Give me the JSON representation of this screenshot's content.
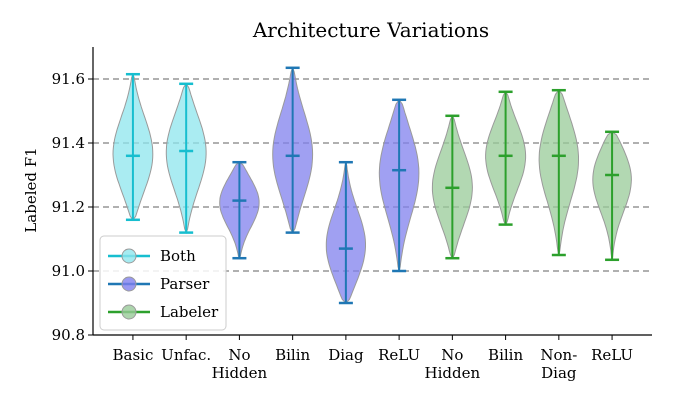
{
  "chart_data": {
    "type": "violin",
    "title": "Architecture Variations",
    "xlabel": "",
    "ylabel": "Labeled F1",
    "ylim": [
      90.8,
      91.7
    ],
    "yticks": [
      90.8,
      91.0,
      91.2,
      91.4,
      91.6
    ],
    "ytick_labels": [
      "90.8",
      "91.0",
      "91.2",
      "91.4",
      "91.6"
    ],
    "grid_lines": [
      91.0,
      91.2,
      91.4,
      91.6
    ],
    "grid": "horizontal-dashed",
    "legend_position": "bottom-left",
    "legend": [
      {
        "name": "Both",
        "group": "both"
      },
      {
        "name": "Parser",
        "group": "parser"
      },
      {
        "name": "Labeler",
        "group": "labeler"
      }
    ],
    "colors": {
      "both": {
        "line": "#17becf",
        "fill": "#8ee6ee"
      },
      "parser": {
        "line": "#1f77b4",
        "fill": "#8080ee"
      },
      "labeler": {
        "line": "#2ca02c",
        "fill": "#98cb98"
      }
    },
    "categories": [
      {
        "label": "Basic",
        "group": "both",
        "min": 91.16,
        "max": 91.615,
        "median": 91.36
      },
      {
        "label": "Unfac.",
        "group": "both",
        "min": 91.12,
        "max": 91.585,
        "median": 91.375
      },
      {
        "label": "No\nHidden",
        "group": "parser",
        "min": 91.04,
        "max": 91.34,
        "median": 91.22
      },
      {
        "label": "Bilin",
        "group": "parser",
        "min": 91.12,
        "max": 91.635,
        "median": 91.36
      },
      {
        "label": "Diag",
        "group": "parser",
        "min": 90.9,
        "max": 91.34,
        "median": 91.07
      },
      {
        "label": "ReLU",
        "group": "parser",
        "min": 91.0,
        "max": 91.535,
        "median": 91.315
      },
      {
        "label": "No\nHidden",
        "group": "labeler",
        "min": 91.04,
        "max": 91.485,
        "median": 91.26
      },
      {
        "label": "Bilin",
        "group": "labeler",
        "min": 91.145,
        "max": 91.56,
        "median": 91.36
      },
      {
        "label": "Non-\nDiag",
        "group": "labeler",
        "min": 91.05,
        "max": 91.565,
        "median": 91.36
      },
      {
        "label": "ReLU",
        "group": "labeler",
        "min": 91.035,
        "max": 91.435,
        "median": 91.3
      }
    ]
  }
}
